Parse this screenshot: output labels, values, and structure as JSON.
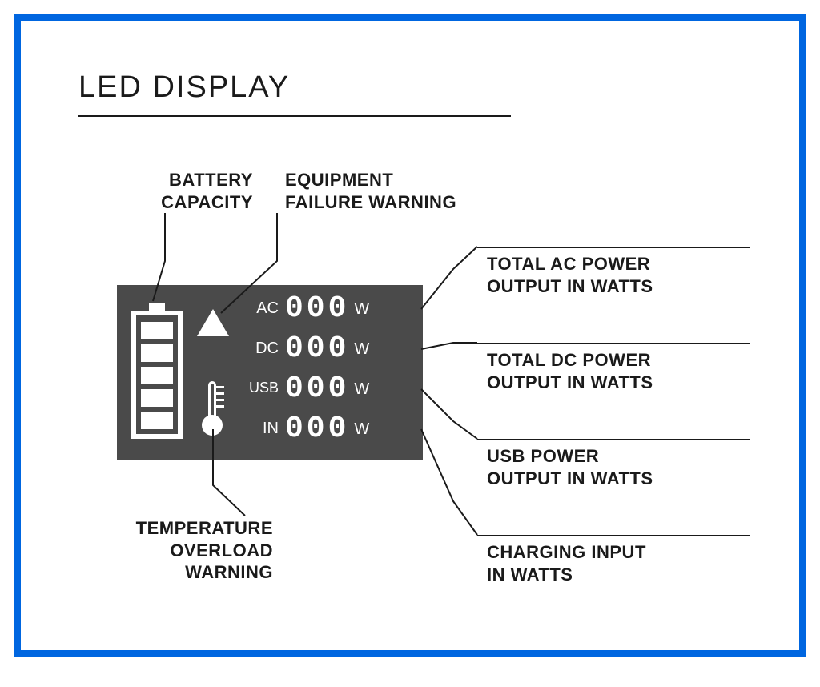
{
  "title": "LED DISPLAY",
  "panel": {
    "background_color": "#4a4a4a",
    "foreground_color": "#ffffff",
    "rows": {
      "ac": {
        "label": "AC",
        "value": "000",
        "unit": "W"
      },
      "dc": {
        "label": "DC",
        "value": "000",
        "unit": "W"
      },
      "usb": {
        "label": "USB",
        "value": "000",
        "unit": "W"
      },
      "in": {
        "label": "IN",
        "value": "000",
        "unit": "W"
      }
    },
    "battery_cells": 5
  },
  "callouts": {
    "battery": "BATTERY\nCAPACITY",
    "failure": "EQUIPMENT\nFAILURE WARNING",
    "ac": "TOTAL AC POWER\nOUTPUT IN WATTS",
    "dc": "TOTAL DC POWER\nOUTPUT IN WATTS",
    "usb": "USB POWER\nOUTPUT IN WATTS",
    "charging": "CHARGING INPUT\nIN WATTS",
    "temp": "TEMPERATURE\nOVERLOAD\nWARNING"
  },
  "colors": {
    "border": "#0066e0",
    "text": "#1a1a1a",
    "page_bg": "#ffffff"
  },
  "typography": {
    "title_fontsize": 38,
    "callout_fontsize": 22,
    "callout_weight": 700
  }
}
